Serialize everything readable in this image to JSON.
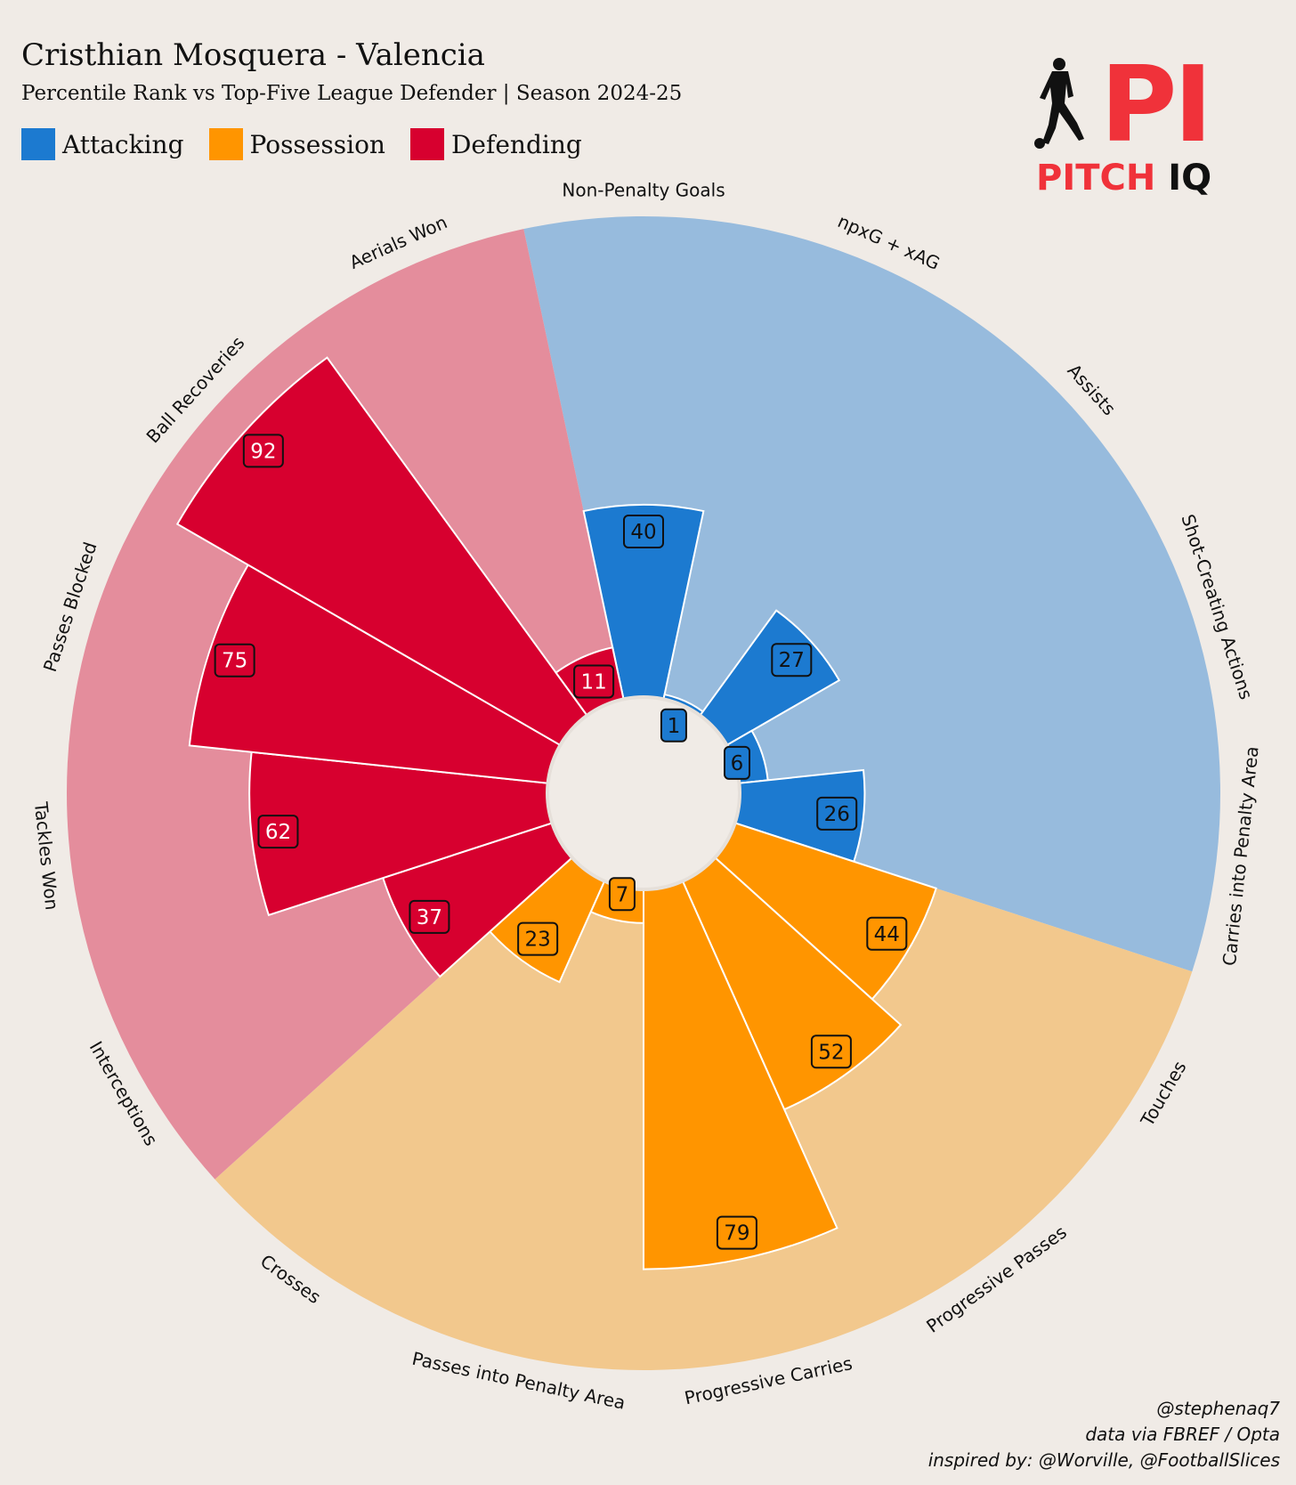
{
  "header": {
    "title": "Cristhian Mosquera - Valencia",
    "subtitle": "Percentile Rank vs Top-Five League Defender | Season 2024-25"
  },
  "legend": [
    {
      "label": "Attacking",
      "color": "#1c7ad0"
    },
    {
      "label": "Possession",
      "color": "#ff9500"
    },
    {
      "label": "Defending",
      "color": "#d7002f"
    }
  ],
  "logo": {
    "mark": "PI",
    "word1": "PITCH",
    "word2": "IQ",
    "icon": "footballer-silhouette-icon"
  },
  "credits": {
    "line1": "@stephenaq7",
    "line2": "data via FBREF / Opta",
    "line3": "inspired by: @Worville, @FootballSlices"
  },
  "chart_data": {
    "type": "polar-bar",
    "range": [
      0,
      100
    ],
    "groups": [
      {
        "name": "Attacking",
        "color": "#1c7ad0",
        "background": "#97bbdd"
      },
      {
        "name": "Possession",
        "color": "#ff9500",
        "background": "#f2c88d"
      },
      {
        "name": "Defending",
        "color": "#d7002f",
        "background": "#e48d9c"
      }
    ],
    "categories": [
      {
        "label": "Non-Penalty Goals",
        "value": 40,
        "group": "Attacking"
      },
      {
        "label": "npxG + xAG",
        "value": 1,
        "group": "Attacking"
      },
      {
        "label": "Assists",
        "value": 27,
        "group": "Attacking"
      },
      {
        "label": "Shot-Creating Actions",
        "value": 6,
        "group": "Attacking"
      },
      {
        "label": "Carries into Penalty Area",
        "value": 26,
        "group": "Attacking"
      },
      {
        "label": "Touches",
        "value": 44,
        "group": "Possession"
      },
      {
        "label": "Progressive Passes",
        "value": 52,
        "group": "Possession"
      },
      {
        "label": "Progressive Carries",
        "value": 79,
        "group": "Possession"
      },
      {
        "label": "Passes into Penalty Area",
        "value": 7,
        "group": "Possession"
      },
      {
        "label": "Crosses",
        "value": 23,
        "group": "Possession"
      },
      {
        "label": "Interceptions",
        "value": 37,
        "group": "Defending"
      },
      {
        "label": "Tackles Won",
        "value": 62,
        "group": "Defending"
      },
      {
        "label": "Passes Blocked",
        "value": 75,
        "group": "Defending"
      },
      {
        "label": "Ball Recoveries",
        "value": 92,
        "group": "Defending"
      },
      {
        "label": "Aerials Won",
        "value": 11,
        "group": "Defending"
      }
    ]
  }
}
